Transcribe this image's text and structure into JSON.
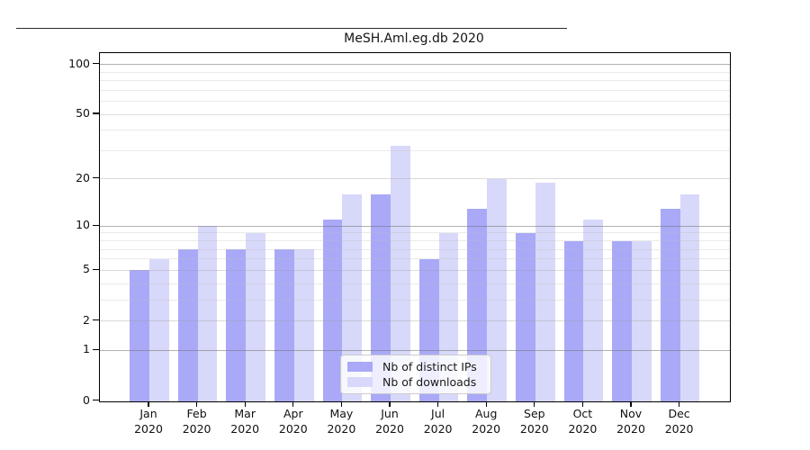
{
  "chart_data": {
    "type": "bar",
    "title": "MeSH.Aml.eg.db 2020",
    "categories": [
      "Jan 2020",
      "Feb 2020",
      "Mar 2020",
      "Apr 2020",
      "May 2020",
      "Jun 2020",
      "Jul 2020",
      "Aug 2020",
      "Sep 2020",
      "Oct 2020",
      "Nov 2020",
      "Dec 2020"
    ],
    "x_tick_months": [
      "Jan",
      "Feb",
      "Mar",
      "Apr",
      "May",
      "Jun",
      "Jul",
      "Aug",
      "Sep",
      "Oct",
      "Nov",
      "Dec"
    ],
    "x_tick_year": "2020",
    "series": [
      {
        "name": "Nb of distinct IPs",
        "color": "#a9a9f8",
        "values": [
          5,
          7,
          7,
          7,
          11,
          16,
          6,
          13,
          9,
          8,
          8,
          13
        ]
      },
      {
        "name": "Nb of downloads",
        "color": "#d8d8fa",
        "values": [
          6,
          10,
          9,
          7,
          16,
          32,
          9,
          20,
          19,
          11,
          8,
          16
        ]
      }
    ],
    "xlabel": "",
    "ylabel": "",
    "y_scale": "log1p",
    "ylim": [
      0,
      117
    ],
    "y_ticks": [
      0,
      1,
      2,
      5,
      10,
      20,
      50,
      100
    ],
    "y_major_gridlines": [
      1,
      10,
      100
    ],
    "y_labeled_minor_gridlines": [
      2,
      5,
      20,
      50
    ],
    "y_minor_gridlines": [
      3,
      4,
      6,
      7,
      8,
      9,
      30,
      40,
      60,
      70,
      80,
      90
    ],
    "grid": true,
    "legend": {
      "position": "bottom-center-inside",
      "entries": [
        "Nb of distinct IPs",
        "Nb of downloads"
      ]
    }
  },
  "colors": {
    "bar_dark": "#a9a9f8",
    "bar_light": "#d8d8fa",
    "grid_major": "rgba(115,115,115,0.55)",
    "grid_labeled_minor": "rgba(160,160,160,0.38)",
    "grid_minor": "rgba(190,190,190,0.32)",
    "axis": "#000000",
    "legend_border": "#cccccc"
  }
}
